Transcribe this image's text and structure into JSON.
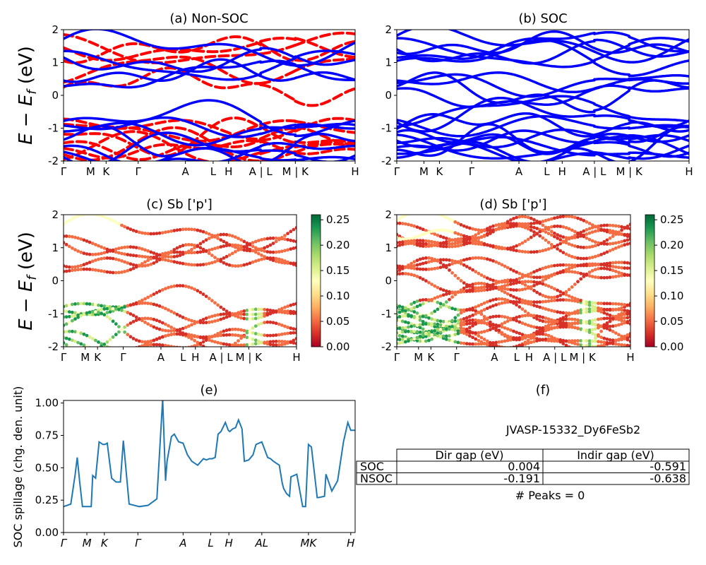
{
  "chart_data": [
    {
      "id": "a",
      "type": "line",
      "title": "(a) Non-SOC",
      "ylabel_base": "E − E",
      "ylabel_sub": "f",
      "ylabel_unit": " (eV)",
      "ylim": [
        -2,
        2
      ],
      "yticks": [
        -2,
        -1,
        0,
        1,
        2
      ],
      "kpath_labels": [
        "Γ",
        "M",
        "K",
        "Γ",
        "A",
        "L",
        "H",
        "A | L",
        "M | K",
        "H"
      ],
      "kpath_positions": [
        0,
        0.093,
        0.146,
        0.256,
        0.418,
        0.513,
        0.566,
        0.676,
        0.795,
        1.0
      ],
      "series": [
        {
          "name": "",
          "color": "#0000ff",
          "style": "solid",
          "energies_at_gamma": [
            1.72,
            1.35,
            1.15,
            0.45,
            0.28,
            -0.78,
            -0.92,
            -1.1,
            -1.35,
            -1.55,
            -1.72,
            -1.88
          ]
        },
        {
          "name": "",
          "color": "#ff0000",
          "style": "dashed",
          "energies_at_gamma": [
            1.85,
            1.45,
            1.05,
            0.4,
            0.25,
            -0.72,
            -0.88,
            -1.18,
            -1.45,
            -1.62,
            -1.8,
            -1.95
          ]
        }
      ]
    },
    {
      "id": "b",
      "type": "line",
      "title": "(b) SOC",
      "ylim": [
        -2,
        2
      ],
      "yticks": [
        -2,
        -1,
        0,
        1,
        2
      ],
      "kpath_labels": [
        "Γ",
        "M",
        "K",
        "Γ",
        "A",
        "L",
        "H",
        "A | L",
        "M | K",
        "H"
      ],
      "kpath_positions": [
        0,
        0.093,
        0.146,
        0.256,
        0.418,
        0.513,
        0.566,
        0.676,
        0.795,
        1.0
      ],
      "series": [
        {
          "name": "",
          "color": "#0000ff",
          "style": "solid",
          "energies_at_gamma": [
            1.82,
            1.74,
            1.4,
            1.3,
            1.15,
            1.05,
            0.45,
            0.38,
            0.28,
            0.2,
            -0.75,
            -0.82,
            -0.95,
            -1.02,
            -1.12,
            -1.2,
            -1.38,
            -1.45,
            -1.58,
            -1.66,
            -1.78,
            -1.9
          ]
        }
      ]
    },
    {
      "id": "c",
      "type": "scatter",
      "title": "(c)  Sb ['p']",
      "ylim": [
        -2,
        2
      ],
      "yticks": [
        -2,
        -1,
        0,
        1,
        2
      ],
      "kpath_labels": [
        "Γ",
        "M",
        "K",
        "Γ",
        "A",
        "L",
        "H",
        "A | L",
        "M | K",
        "H"
      ],
      "kpath_positions": [
        0,
        0.093,
        0.146,
        0.256,
        0.418,
        0.513,
        0.566,
        0.676,
        0.795,
        1.0
      ],
      "colormap": "RdYlGn",
      "colorbar_ticks": [
        "0.00",
        "0.05",
        "0.10",
        "0.15",
        "0.20",
        "0.25"
      ],
      "color_range": [
        0,
        0.26
      ]
    },
    {
      "id": "d",
      "type": "scatter",
      "title": "(d) Sb ['p']",
      "ylim": [
        -2,
        2
      ],
      "yticks": [
        -2,
        -1,
        0,
        1,
        2
      ],
      "kpath_labels": [
        "Γ",
        "M",
        "K",
        "Γ",
        "A",
        "L",
        "H",
        "A | L",
        "M | K",
        "H"
      ],
      "kpath_positions": [
        0,
        0.093,
        0.146,
        0.256,
        0.418,
        0.513,
        0.566,
        0.676,
        0.795,
        1.0
      ],
      "colormap": "RdYlGn",
      "colorbar_ticks": [
        "0.00",
        "0.05",
        "0.10",
        "0.15",
        "0.20",
        "0.25"
      ],
      "color_range": [
        0,
        0.26
      ]
    },
    {
      "id": "e",
      "type": "line",
      "title": "(e)",
      "ylabel": "SOC spillage (chg. den. unit)",
      "ylim": [
        0,
        1.02
      ],
      "yticks": [
        "0.00",
        "0.25",
        "0.50",
        "0.75",
        "1.00"
      ],
      "xtick_labels": [
        "Γ",
        "M",
        "K",
        "Γ",
        "A",
        "L",
        "H",
        "AL",
        "MK",
        "H"
      ],
      "kpath_positions": [
        0,
        0.08,
        0.14,
        0.255,
        0.41,
        0.505,
        0.567,
        0.68,
        0.84,
        0.985
      ],
      "series": [
        {
          "name": "",
          "color": "#1f77b4",
          "x": [
            0,
            0.025,
            0.04,
            0.047,
            0.055,
            0.065,
            0.075,
            0.095,
            0.1,
            0.11,
            0.122,
            0.135,
            0.142,
            0.15,
            0.165,
            0.18,
            0.195,
            0.205,
            0.225,
            0.26,
            0.29,
            0.32,
            0.34,
            0.35,
            0.355,
            0.37,
            0.38,
            0.395,
            0.41,
            0.425,
            0.44,
            0.46,
            0.48,
            0.49,
            0.5,
            0.51,
            0.52,
            0.53,
            0.54,
            0.555,
            0.565,
            0.57,
            0.58,
            0.59,
            0.6,
            0.612,
            0.62,
            0.635,
            0.65,
            0.66,
            0.68,
            0.7,
            0.71,
            0.72,
            0.74,
            0.75,
            0.755,
            0.765,
            0.775,
            0.78,
            0.8,
            0.82,
            0.83,
            0.84,
            0.845,
            0.85,
            0.87,
            0.875,
            0.895,
            0.9,
            0.92,
            0.93,
            0.94,
            0.96,
            0.975,
            0.985,
            1.0
          ],
          "y": [
            0.2,
            0.22,
            0.45,
            0.58,
            0.4,
            0.2,
            0.2,
            0.2,
            0.44,
            0.42,
            0.7,
            0.68,
            0.68,
            0.69,
            0.42,
            0.39,
            0.39,
            0.71,
            0.22,
            0.2,
            0.21,
            0.26,
            1.03,
            0.4,
            0.55,
            0.74,
            0.76,
            0.7,
            0.69,
            0.6,
            0.55,
            0.52,
            0.57,
            0.56,
            0.57,
            0.57,
            0.58,
            0.76,
            0.78,
            0.85,
            0.79,
            0.78,
            0.8,
            0.81,
            0.87,
            0.8,
            0.55,
            0.56,
            0.6,
            0.68,
            0.7,
            0.58,
            0.57,
            0.55,
            0.52,
            0.38,
            0.34,
            0.3,
            0.28,
            0.43,
            0.45,
            0.2,
            0.2,
            0.68,
            0.67,
            0.66,
            0.27,
            0.27,
            0.28,
            0.45,
            0.32,
            0.36,
            0.4,
            0.7,
            0.85,
            0.79,
            0.79
          ]
        }
      ]
    }
  ],
  "panel_f": {
    "title": "(f)",
    "material": "JVASP-15332_Dy6FeSb2",
    "table": {
      "headers": [
        "Dir gap (eV)",
        "Indir gap (eV)"
      ],
      "rows": [
        {
          "label": "SOC",
          "dir": "0.004",
          "indir": "-0.591"
        },
        {
          "label": "NSOC",
          "dir": "-0.191",
          "indir": "-0.638"
        }
      ]
    },
    "peaks": "# Peaks = 0"
  },
  "colors": {
    "nonsoc_solid": "#0000ff",
    "nonsoc_dashed": "#ff0000",
    "soc": "#0000ff",
    "spillage": "#1f77b4"
  }
}
